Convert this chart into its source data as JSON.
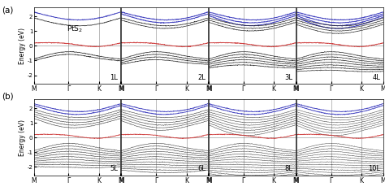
{
  "row_a_labels": [
    "1L",
    "2L",
    "3L",
    "4L"
  ],
  "row_b_labels": [
    "5L",
    "6L",
    "8L",
    "10L"
  ],
  "k_points": [
    "M",
    "Γ",
    "K",
    "M"
  ],
  "k_ticks": [
    0.0,
    0.4,
    0.75,
    1.0
  ],
  "ylim": [
    -2.6,
    2.6
  ],
  "yticks": [
    -2,
    -1,
    0,
    1,
    2
  ],
  "ylabel": "Energy (eV)",
  "blue_color": "#3333bb",
  "red_color": "#cc3333",
  "dark_color": "#222222",
  "mid_color": "#555555"
}
